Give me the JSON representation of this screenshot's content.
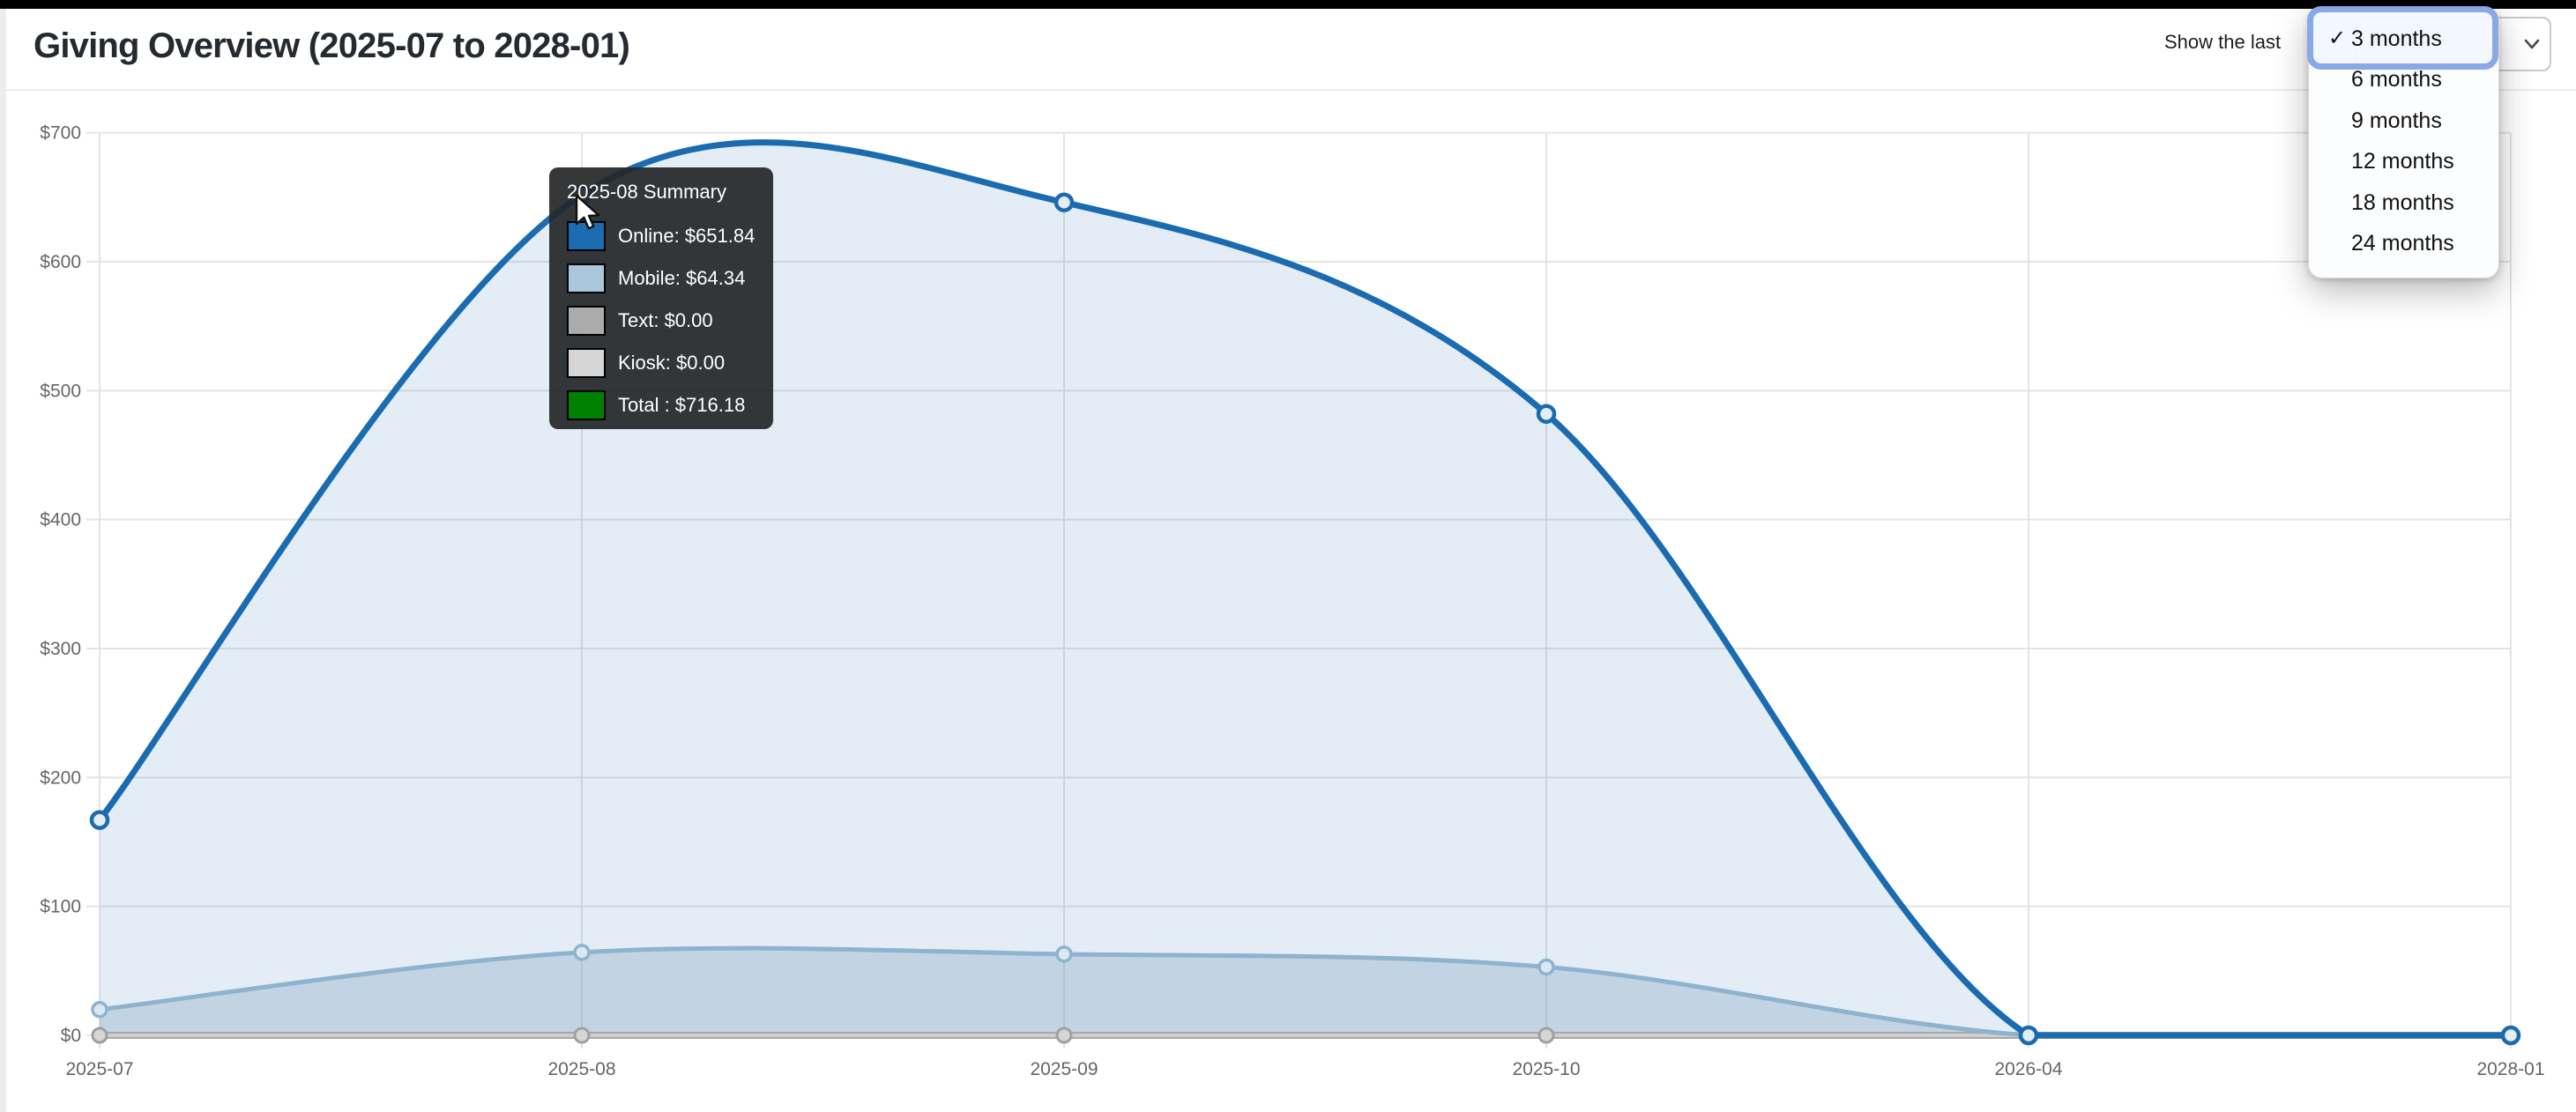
{
  "header": {
    "title": "Giving Overview (2025-07 to 2028-01)",
    "filter_label": "Show the last",
    "select_value": "3 months"
  },
  "dropdown": {
    "checkmark": "✓",
    "selected": "3 months",
    "options": [
      "3 months",
      "6 months",
      "9 months",
      "12 months",
      "18 months",
      "24 months"
    ]
  },
  "tooltip": {
    "title": "2025-08 Summary",
    "rows": [
      {
        "label": "Online: $651.84",
        "color": "#1b6cb1"
      },
      {
        "label": "Mobile: $64.34",
        "color": "#a9c6dd"
      },
      {
        "label": "Text: $0.00",
        "color": "#ababab"
      },
      {
        "label": "Kiosk: $0.00",
        "color": "#d6d6d6"
      },
      {
        "label": "Total : $716.18",
        "color": "#008000"
      }
    ]
  },
  "chart_data": {
    "type": "line",
    "title": "Giving Overview (2025-07 to 2028-01)",
    "categories": [
      "2025-07",
      "2025-08",
      "2025-09",
      "2025-10",
      "2026-04",
      "2028-01"
    ],
    "series": [
      {
        "name": "Online",
        "color": "#1a6bb0",
        "width": 7,
        "fill": "rgba(30,107,177,0.12)",
        "values": [
          167,
          651.84,
          646,
          482,
          0,
          0
        ]
      },
      {
        "name": "Mobile",
        "color": "#8db3cf",
        "width": 5,
        "fill": "rgba(125,160,190,0.33)",
        "values": [
          20,
          64.34,
          63,
          53,
          0,
          0
        ]
      },
      {
        "name": "Text",
        "color": "#a8a8a8",
        "width": 8,
        "fill": null,
        "values": [
          0,
          0,
          0,
          0,
          0,
          0
        ]
      },
      {
        "name": "Kiosk",
        "color": "#cfcfcf",
        "width": 4,
        "fill": null,
        "values": [
          0,
          0,
          0,
          0,
          0,
          0
        ]
      }
    ],
    "ylim": [
      0,
      700
    ],
    "y_ticks": [
      {
        "label": "$0",
        "value": 0
      },
      {
        "label": "$100",
        "value": 100
      },
      {
        "label": "$200",
        "value": 200
      },
      {
        "label": "$300",
        "value": 300
      },
      {
        "label": "$400",
        "value": 400
      },
      {
        "label": "$500",
        "value": 500
      },
      {
        "label": "$600",
        "value": 600
      },
      {
        "label": "$700",
        "value": 700
      }
    ],
    "grid": true,
    "smoothing": "bezier",
    "legend_position": "none"
  }
}
